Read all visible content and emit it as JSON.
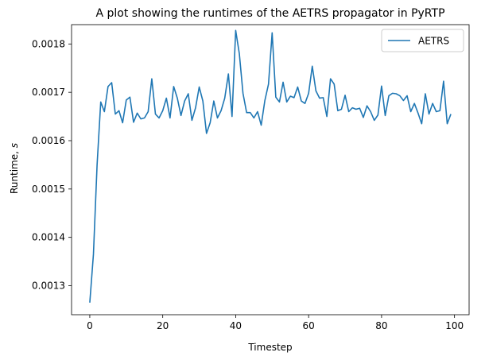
{
  "chart_data": {
    "type": "line",
    "title": "A plot showing the runtimes of the AETRS propagator in PyRTP",
    "xlabel": "Timestep",
    "ylabel": "Runtime, s",
    "xlim": [
      -5,
      104
    ],
    "ylim": [
      0.00124,
      0.00184
    ],
    "xticks": [
      0,
      20,
      40,
      60,
      80,
      100
    ],
    "yticks": [
      0.0013,
      0.0014,
      0.0015,
      0.0016,
      0.0017,
      0.0018
    ],
    "ytick_labels": [
      "0.0013",
      "0.0014",
      "0.0015",
      "0.0016",
      "0.0017",
      "0.0018"
    ],
    "grid": false,
    "legend_position": "top-right",
    "series": [
      {
        "name": "AETRS",
        "color": "#1f77b4",
        "x": [
          0,
          1,
          2,
          3,
          4,
          5,
          6,
          7,
          8,
          9,
          10,
          11,
          12,
          13,
          14,
          15,
          16,
          17,
          18,
          19,
          20,
          21,
          22,
          23,
          24,
          25,
          26,
          27,
          28,
          29,
          30,
          31,
          32,
          33,
          34,
          35,
          36,
          37,
          38,
          39,
          40,
          41,
          42,
          43,
          44,
          45,
          46,
          47,
          48,
          49,
          50,
          51,
          52,
          53,
          54,
          55,
          56,
          57,
          58,
          59,
          60,
          61,
          62,
          63,
          64,
          65,
          66,
          67,
          68,
          69,
          70,
          71,
          72,
          73,
          74,
          75,
          76,
          77,
          78,
          79,
          80,
          81,
          82,
          83,
          84,
          85,
          86,
          87,
          88,
          89,
          90,
          91,
          92,
          93,
          94,
          95,
          96,
          97,
          98,
          99
        ],
        "y": [
          0.001265,
          0.001365,
          0.00155,
          0.00168,
          0.00166,
          0.001712,
          0.00172,
          0.001655,
          0.001662,
          0.001637,
          0.001684,
          0.00169,
          0.001638,
          0.001657,
          0.001645,
          0.001647,
          0.00166,
          0.001728,
          0.001655,
          0.001647,
          0.001662,
          0.001688,
          0.001647,
          0.001712,
          0.001688,
          0.001652,
          0.001682,
          0.001697,
          0.001642,
          0.001668,
          0.001711,
          0.001682,
          0.001615,
          0.001637,
          0.001682,
          0.001647,
          0.001662,
          0.001688,
          0.001738,
          0.00165,
          0.001828,
          0.00178,
          0.001698,
          0.001658,
          0.001658,
          0.001647,
          0.00166,
          0.001632,
          0.001683,
          0.001717,
          0.001823,
          0.00169,
          0.00168,
          0.001721,
          0.00168,
          0.001692,
          0.001689,
          0.001711,
          0.001682,
          0.001677,
          0.001698,
          0.001754,
          0.001703,
          0.001688,
          0.001689,
          0.00165,
          0.001728,
          0.001717,
          0.001662,
          0.001665,
          0.001694,
          0.00166,
          0.001668,
          0.001665,
          0.001667,
          0.001648,
          0.001672,
          0.00166,
          0.001642,
          0.001653,
          0.001713,
          0.001652,
          0.001693,
          0.001698,
          0.001697,
          0.001693,
          0.001683,
          0.001693,
          0.00166,
          0.001677,
          0.001657,
          0.001635,
          0.001697,
          0.001655,
          0.001677,
          0.00166,
          0.001662,
          0.001723,
          0.001635,
          0.001655
        ]
      }
    ]
  }
}
